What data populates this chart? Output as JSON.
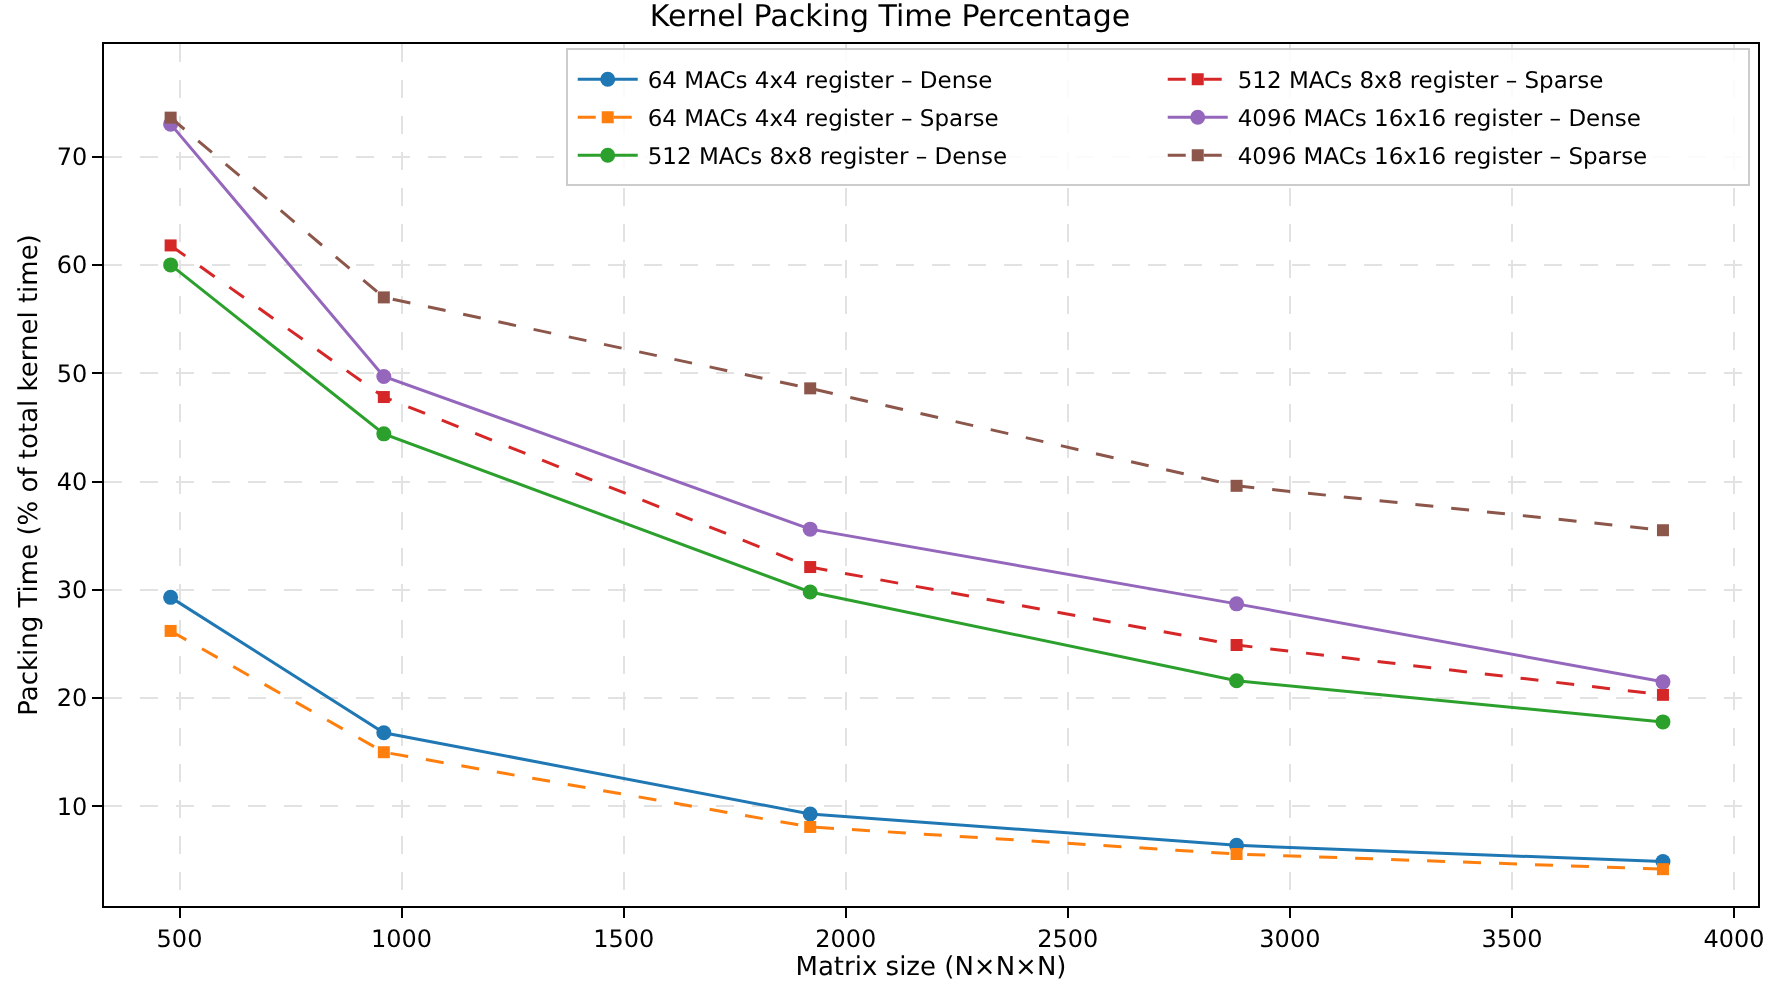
{
  "chart_data": {
    "type": "line",
    "title": "Kernel Packing Time Percentage",
    "xlabel": "Matrix size (N×N×N)",
    "ylabel": "Packing Time (% of total kernel time)",
    "x": [
      480,
      960,
      1920,
      2880,
      3840
    ],
    "xlim": [
      330,
      4054
    ],
    "xticks": [
      500,
      1000,
      1500,
      2000,
      2500,
      3000,
      3500,
      4000
    ],
    "ylim": [
      0.8,
      80.4
    ],
    "yticks": [
      10,
      20,
      30,
      40,
      50,
      60,
      70
    ],
    "grid": true,
    "legend": "top right",
    "series": [
      {
        "name": "64 MACs 4x4 register – Dense",
        "color": "#1f77b4",
        "marker": "circle",
        "line_style": "solid",
        "values": [
          29.3,
          16.8,
          9.3,
          6.4,
          4.9
        ]
      },
      {
        "name": "64 MACs 4x4 register – Sparse",
        "color": "#ff7f0e",
        "marker": "square",
        "line_style": "dashed",
        "values": [
          26.2,
          15.0,
          8.1,
          5.6,
          4.2
        ]
      },
      {
        "name": "512 MACs 8x8 register – Dense",
        "color": "#2ca02c",
        "marker": "circle",
        "line_style": "solid",
        "values": [
          60.0,
          44.4,
          29.8,
          21.6,
          17.8
        ]
      },
      {
        "name": "512 MACs 8x8 register – Sparse",
        "color": "#d62728",
        "marker": "square",
        "line_style": "dashed",
        "values": [
          61.8,
          47.8,
          32.1,
          24.9,
          20.3
        ]
      },
      {
        "name": "4096 MACs 16x16 register – Dense",
        "color": "#9467bd",
        "marker": "circle",
        "line_style": "solid",
        "values": [
          73.0,
          49.7,
          35.6,
          28.7,
          21.5
        ]
      },
      {
        "name": "4096 MACs 16x16 register – Sparse",
        "color": "#8c564b",
        "marker": "square",
        "line_style": "dashed",
        "values": [
          73.6,
          57.0,
          48.6,
          39.6,
          35.5
        ]
      }
    ]
  }
}
